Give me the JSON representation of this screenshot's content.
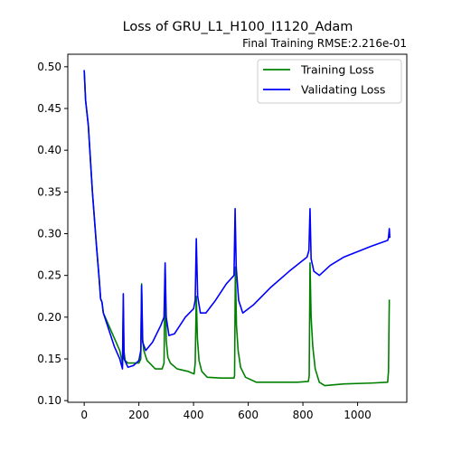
{
  "chart_data": {
    "type": "line",
    "title": "Loss of GRU_L1_H100_I1120_Adam",
    "subtitle": "Final Training RMSE:2.216e-01",
    "xlabel": "",
    "ylabel": "",
    "xlim": [
      -60,
      1180
    ],
    "ylim": [
      0.098,
      0.515
    ],
    "x_ticks": [
      0,
      200,
      400,
      600,
      800,
      1000
    ],
    "y_ticks": [
      0.1,
      0.15,
      0.2,
      0.25,
      0.3,
      0.35,
      0.4,
      0.45,
      0.5
    ],
    "grid": false,
    "legend": {
      "position": "top-right"
    },
    "series": [
      {
        "name": "Training Loss",
        "color": "#008000",
        "points": [
          [
            0,
            0.496
          ],
          [
            5,
            0.46
          ],
          [
            15,
            0.43
          ],
          [
            30,
            0.35
          ],
          [
            45,
            0.285
          ],
          [
            55,
            0.245
          ],
          [
            60,
            0.222
          ],
          [
            65,
            0.218
          ],
          [
            70,
            0.205
          ],
          [
            90,
            0.19
          ],
          [
            110,
            0.175
          ],
          [
            130,
            0.16
          ],
          [
            138,
            0.148
          ],
          [
            140,
            0.142
          ],
          [
            143,
            0.21
          ],
          [
            145,
            0.16
          ],
          [
            150,
            0.148
          ],
          [
            160,
            0.145
          ],
          [
            180,
            0.145
          ],
          [
            200,
            0.145
          ],
          [
            207,
            0.15
          ],
          [
            210,
            0.24
          ],
          [
            213,
            0.175
          ],
          [
            218,
            0.16
          ],
          [
            230,
            0.148
          ],
          [
            260,
            0.138
          ],
          [
            285,
            0.138
          ],
          [
            292,
            0.145
          ],
          [
            296,
            0.258
          ],
          [
            300,
            0.172
          ],
          [
            306,
            0.152
          ],
          [
            315,
            0.145
          ],
          [
            340,
            0.138
          ],
          [
            380,
            0.135
          ],
          [
            402,
            0.132
          ],
          [
            406,
            0.145
          ],
          [
            410,
            0.225
          ],
          [
            414,
            0.175
          ],
          [
            420,
            0.148
          ],
          [
            430,
            0.135
          ],
          [
            450,
            0.128
          ],
          [
            500,
            0.127
          ],
          [
            548,
            0.127
          ],
          [
            550,
            0.13
          ],
          [
            553,
            0.26
          ],
          [
            557,
            0.19
          ],
          [
            563,
            0.16
          ],
          [
            572,
            0.14
          ],
          [
            590,
            0.128
          ],
          [
            630,
            0.122
          ],
          [
            700,
            0.122
          ],
          [
            780,
            0.122
          ],
          [
            820,
            0.123
          ],
          [
            823,
            0.13
          ],
          [
            826,
            0.265
          ],
          [
            830,
            0.2
          ],
          [
            836,
            0.165
          ],
          [
            845,
            0.138
          ],
          [
            860,
            0.122
          ],
          [
            880,
            0.118
          ],
          [
            950,
            0.12
          ],
          [
            1050,
            0.121
          ],
          [
            1110,
            0.122
          ],
          [
            1113,
            0.135
          ],
          [
            1116,
            0.221
          ]
        ]
      },
      {
        "name": "Validating Loss",
        "color": "#0000ff",
        "points": [
          [
            0,
            0.496
          ],
          [
            5,
            0.46
          ],
          [
            15,
            0.43
          ],
          [
            30,
            0.35
          ],
          [
            45,
            0.285
          ],
          [
            55,
            0.245
          ],
          [
            60,
            0.222
          ],
          [
            65,
            0.218
          ],
          [
            70,
            0.205
          ],
          [
            90,
            0.185
          ],
          [
            110,
            0.165
          ],
          [
            130,
            0.15
          ],
          [
            140,
            0.138
          ],
          [
            143,
            0.228
          ],
          [
            146,
            0.15
          ],
          [
            160,
            0.14
          ],
          [
            180,
            0.142
          ],
          [
            200,
            0.148
          ],
          [
            207,
            0.16
          ],
          [
            210,
            0.238
          ],
          [
            214,
            0.17
          ],
          [
            225,
            0.16
          ],
          [
            250,
            0.17
          ],
          [
            280,
            0.19
          ],
          [
            292,
            0.2
          ],
          [
            296,
            0.265
          ],
          [
            300,
            0.2
          ],
          [
            310,
            0.178
          ],
          [
            330,
            0.18
          ],
          [
            370,
            0.2
          ],
          [
            400,
            0.21
          ],
          [
            406,
            0.22
          ],
          [
            410,
            0.294
          ],
          [
            415,
            0.225
          ],
          [
            425,
            0.205
          ],
          [
            445,
            0.205
          ],
          [
            480,
            0.22
          ],
          [
            520,
            0.24
          ],
          [
            548,
            0.25
          ],
          [
            552,
            0.33
          ],
          [
            556,
            0.26
          ],
          [
            565,
            0.22
          ],
          [
            580,
            0.205
          ],
          [
            620,
            0.215
          ],
          [
            680,
            0.235
          ],
          [
            750,
            0.255
          ],
          [
            815,
            0.272
          ],
          [
            822,
            0.28
          ],
          [
            826,
            0.33
          ],
          [
            830,
            0.27
          ],
          [
            840,
            0.255
          ],
          [
            860,
            0.25
          ],
          [
            900,
            0.262
          ],
          [
            950,
            0.272
          ],
          [
            1050,
            0.285
          ],
          [
            1110,
            0.292
          ],
          [
            1113,
            0.295
          ],
          [
            1116,
            0.306
          ],
          [
            1118,
            0.295
          ]
        ]
      }
    ]
  }
}
